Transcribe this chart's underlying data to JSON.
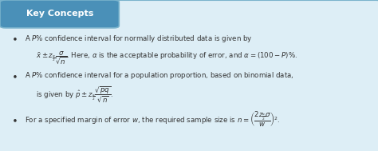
{
  "title": "Key Concepts",
  "title_bg": "#4a90b8",
  "title_text_color": "#ffffff",
  "box_bg": "#ddeef6",
  "box_border": "#7ab3cc",
  "text_color": "#333333",
  "bullet1_line1": "A $P$% confidence interval for normally distributed data is given by",
  "bullet2_line1": "A $P$% confidence interval for a population proportion, based on binomial data,",
  "bullet3_line1": "For a specified margin of error $w$, the required sample size is"
}
